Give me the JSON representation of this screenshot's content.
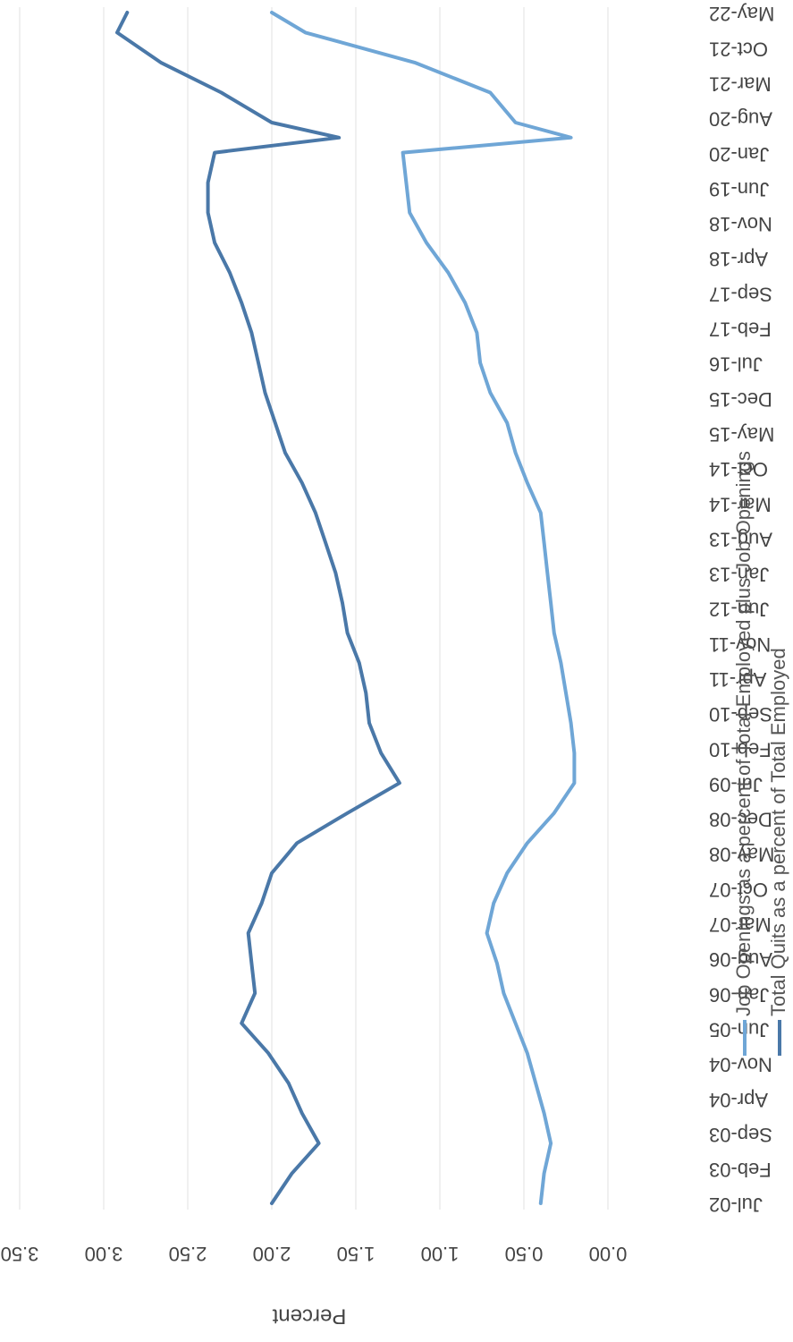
{
  "chart_data": {
    "type": "line",
    "orientation": "rotated 180 degrees",
    "title": "",
    "xlabel": "",
    "ylabel": "Percent",
    "ylim": [
      0,
      3.5
    ],
    "y_ticks": [
      "0.00",
      "0.50",
      "1.00",
      "1.50",
      "2.00",
      "2.50",
      "3.00",
      "3.50"
    ],
    "x_ticks": [
      "Jul-02",
      "Feb-03",
      "Sep-03",
      "Apr-04",
      "Nov-04",
      "Jun-05",
      "Jan-06",
      "Aug-06",
      "Mar-07",
      "Oct-07",
      "May-08",
      "Dec-08",
      "Jul-09",
      "Feb-10",
      "Sep-10",
      "Apr-11",
      "Nov-11",
      "Jun-12",
      "Jan-13",
      "Aug-13",
      "Mar-14",
      "Oct-14",
      "May-15",
      "Dec-15",
      "Jul-16",
      "Feb-17",
      "Sep-17",
      "Apr-18",
      "Nov-18",
      "Jun-19",
      "Jan-20",
      "Aug-20",
      "Mar-21",
      "Oct-21",
      "May-22"
    ],
    "x_start": "Jul-02",
    "x_end": "May-22",
    "grid": "horizontal",
    "legend_position": "bottom",
    "series": [
      {
        "name": "Job Openings as a percent of Total Employed plus Job Openings",
        "color": "#6fa6d6",
        "points": [
          [
            "Jul-02",
            0.4
          ],
          [
            "Jan-03",
            0.38
          ],
          [
            "Jul-03",
            0.34
          ],
          [
            "Jan-04",
            0.38
          ],
          [
            "Jul-04",
            0.43
          ],
          [
            "Jan-05",
            0.48
          ],
          [
            "Jul-05",
            0.55
          ],
          [
            "Jan-06",
            0.62
          ],
          [
            "Jul-06",
            0.66
          ],
          [
            "Jan-07",
            0.72
          ],
          [
            "Jul-07",
            0.68
          ],
          [
            "Jan-08",
            0.6
          ],
          [
            "Jul-08",
            0.48
          ],
          [
            "Jan-09",
            0.32
          ],
          [
            "Jul-09",
            0.2
          ],
          [
            "Jan-10",
            0.2
          ],
          [
            "Jul-10",
            0.22
          ],
          [
            "Jan-11",
            0.25
          ],
          [
            "Jul-11",
            0.28
          ],
          [
            "Jan-12",
            0.32
          ],
          [
            "Jul-12",
            0.34
          ],
          [
            "Jan-13",
            0.36
          ],
          [
            "Jul-13",
            0.38
          ],
          [
            "Jan-14",
            0.4
          ],
          [
            "Jul-14",
            0.48
          ],
          [
            "Jan-15",
            0.55
          ],
          [
            "Jul-15",
            0.6
          ],
          [
            "Jan-16",
            0.7
          ],
          [
            "Jul-16",
            0.76
          ],
          [
            "Jan-17",
            0.78
          ],
          [
            "Jul-17",
            0.85
          ],
          [
            "Jan-18",
            0.95
          ],
          [
            "Jul-18",
            1.08
          ],
          [
            "Jan-19",
            1.18
          ],
          [
            "Jul-19",
            1.2
          ],
          [
            "Jan-20",
            1.22
          ],
          [
            "Apr-20",
            0.22
          ],
          [
            "Jul-20",
            0.55
          ],
          [
            "Jan-21",
            0.7
          ],
          [
            "Jul-21",
            1.15
          ],
          [
            "Jan-22",
            1.8
          ],
          [
            "May-22",
            2.0
          ]
        ]
      },
      {
        "name": "Total Quits as a percent of Total Employed",
        "color": "#4a78a8",
        "points": [
          [
            "Jul-02",
            2.0
          ],
          [
            "Jan-03",
            1.88
          ],
          [
            "Jul-03",
            1.72
          ],
          [
            "Jan-04",
            1.82
          ],
          [
            "Jul-04",
            1.9
          ],
          [
            "Jan-05",
            2.02
          ],
          [
            "Jul-05",
            2.18
          ],
          [
            "Jan-06",
            2.1
          ],
          [
            "Jul-06",
            2.12
          ],
          [
            "Jan-07",
            2.14
          ],
          [
            "Jul-07",
            2.06
          ],
          [
            "Jan-08",
            2.0
          ],
          [
            "Jul-08",
            1.85
          ],
          [
            "Jan-09",
            1.55
          ],
          [
            "Jul-09",
            1.24
          ],
          [
            "Jan-10",
            1.35
          ],
          [
            "Jul-10",
            1.42
          ],
          [
            "Jan-11",
            1.44
          ],
          [
            "Jul-11",
            1.48
          ],
          [
            "Jan-12",
            1.55
          ],
          [
            "Jul-12",
            1.58
          ],
          [
            "Jan-13",
            1.62
          ],
          [
            "Jul-13",
            1.68
          ],
          [
            "Jan-14",
            1.74
          ],
          [
            "Jul-14",
            1.82
          ],
          [
            "Jan-15",
            1.92
          ],
          [
            "Jul-15",
            1.98
          ],
          [
            "Jan-16",
            2.04
          ],
          [
            "Jul-16",
            2.08
          ],
          [
            "Jan-17",
            2.12
          ],
          [
            "Jul-17",
            2.18
          ],
          [
            "Jan-18",
            2.25
          ],
          [
            "Jul-18",
            2.34
          ],
          [
            "Jan-19",
            2.38
          ],
          [
            "Jul-19",
            2.38
          ],
          [
            "Jan-20",
            2.34
          ],
          [
            "Apr-20",
            1.6
          ],
          [
            "Jul-20",
            2.0
          ],
          [
            "Jan-21",
            2.3
          ],
          [
            "Jul-21",
            2.66
          ],
          [
            "Jan-22",
            2.92
          ],
          [
            "May-22",
            2.86
          ]
        ]
      }
    ]
  }
}
